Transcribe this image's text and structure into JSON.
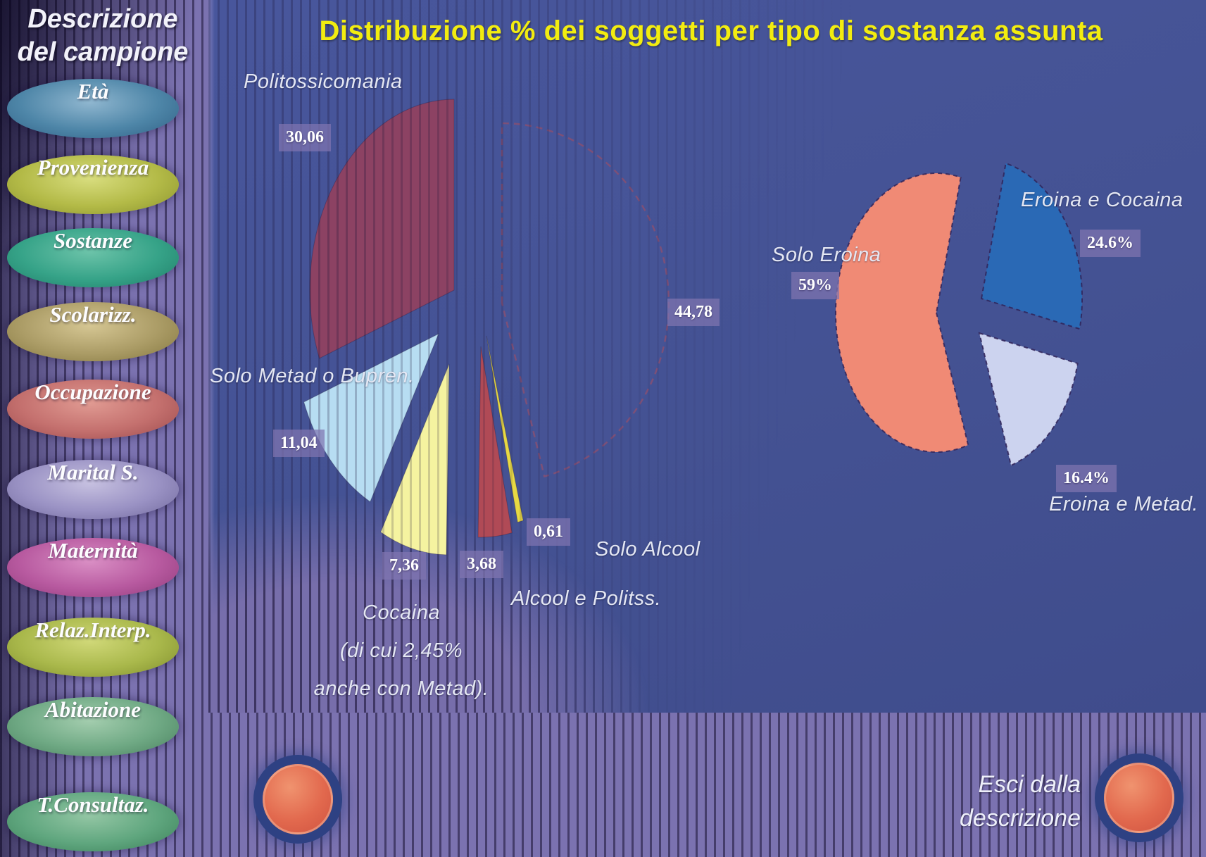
{
  "title": "Distribuzione % dei soggetti per tipo di sostanza assunta",
  "sidebar": {
    "title_line1": "Descrizione",
    "title_line2": "del campione",
    "items": [
      {
        "label": "Età",
        "colors": {
          "light": "#8fb6cf",
          "mid": "#4e86a8",
          "dark": "#2f5f84"
        }
      },
      {
        "label": "Provenienza",
        "colors": {
          "light": "#d8dd7e",
          "mid": "#b3ba47",
          "dark": "#8a922e"
        }
      },
      {
        "label": "Sostanze",
        "colors": {
          "light": "#6cc3a9",
          "mid": "#36a388",
          "dark": "#1f7d67"
        }
      },
      {
        "label": "Scolarizz.",
        "colors": {
          "light": "#d5c693",
          "mid": "#ab9c66",
          "dark": "#83763f"
        }
      },
      {
        "label": "Occupazione",
        "colors": {
          "light": "#e09a92",
          "mid": "#c4706e",
          "dark": "#9c4a4c"
        }
      },
      {
        "label": "Marital S.",
        "colors": {
          "light": "#c6c0e0",
          "mid": "#9a92c4",
          "dark": "#6f679b"
        }
      },
      {
        "label": "Maternità",
        "colors": {
          "light": "#d98ec4",
          "mid": "#b85aa0",
          "dark": "#8f3a7a"
        }
      },
      {
        "label": "Relaz.Interp.",
        "colors": {
          "light": "#d0d878",
          "mid": "#a9b84b",
          "dark": "#7e8c2c"
        }
      },
      {
        "label": "Abitazione",
        "colors": {
          "light": "#a3cdae",
          "mid": "#6fa984",
          "dark": "#49805e"
        }
      },
      {
        "label": "T.Consultaz.",
        "colors": {
          "light": "#93c6a4",
          "mid": "#5fa67e",
          "dark": "#3b7f58"
        }
      }
    ]
  },
  "footer": {
    "exit_line1": "Esci dalla",
    "exit_line2": "descrizione"
  },
  "colors": {
    "background": "#7b72b0",
    "panel": "#46549a",
    "title": "#f2ec10",
    "label_box": "rgba(128,116,176,0.72)"
  },
  "chart_data": [
    {
      "type": "pie",
      "slices": [
        {
          "label": "",
          "display": "44,78",
          "value": 44.78,
          "color": "none",
          "style": "dashed-outline"
        },
        {
          "label": "Solo Alcool",
          "display": "0,61",
          "value": 0.61,
          "color": "#e8d943"
        },
        {
          "label": "Alcool e Politss.",
          "display": "3,68",
          "value": 3.68,
          "color": "#b04a56"
        },
        {
          "label": "Cocaina",
          "display": "7,36",
          "value": 7.36,
          "color": "#f5f3a0",
          "note_line1": "(di cui 2,45%",
          "note_line2": "anche con Metad)."
        },
        {
          "label": "Solo Metad o Bupren.",
          "display": "11,04",
          "value": 11.04,
          "color": "#b7ddf2"
        },
        {
          "label": "Politossicomania",
          "display": "30,06",
          "value": 30.06,
          "color": "#8c4263"
        }
      ]
    },
    {
      "type": "pie",
      "slices": [
        {
          "label": "Eroina e Cocaina",
          "display": "24.6%",
          "value": 24.6,
          "color": "#2a69b5"
        },
        {
          "label": "Eroina e Metad.",
          "display": "16.4%",
          "value": 16.4,
          "color": "#ccd3ef"
        },
        {
          "label": "Solo Eroina",
          "display": "59%",
          "value": 59.0,
          "color": "#f08a75"
        }
      ]
    }
  ]
}
